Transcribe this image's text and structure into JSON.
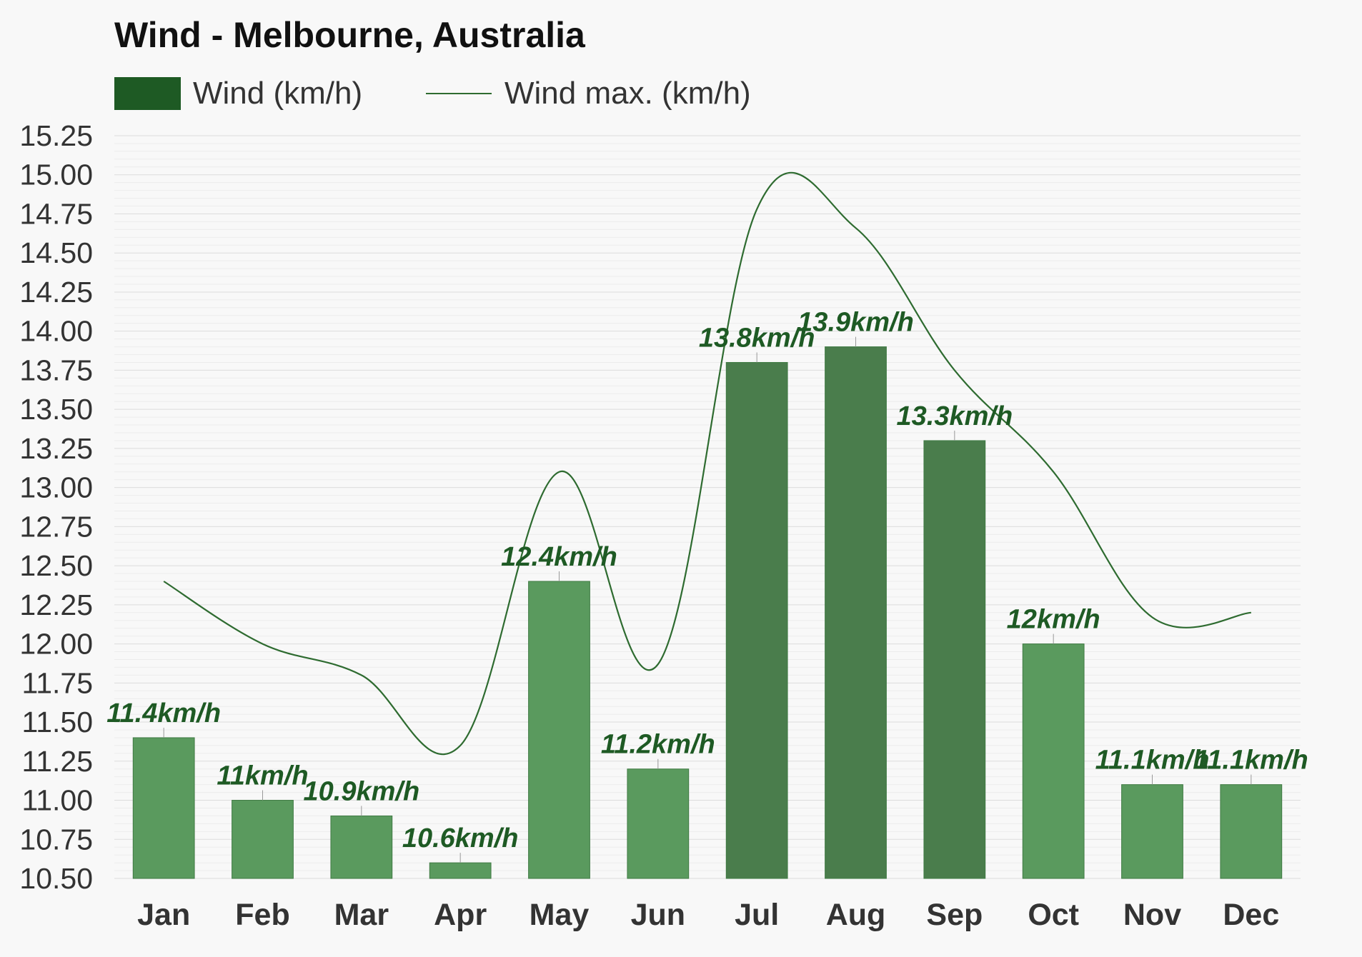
{
  "chart_data": {
    "type": "bar",
    "title": "Wind - Melbourne, Australia",
    "categories": [
      "Jan",
      "Feb",
      "Mar",
      "Apr",
      "May",
      "Jun",
      "Jul",
      "Aug",
      "Sep",
      "Oct",
      "Nov",
      "Dec"
    ],
    "series": [
      {
        "name": "Wind (km/h)",
        "type": "bar",
        "values": [
          11.4,
          11.0,
          10.9,
          10.6,
          12.4,
          11.2,
          13.8,
          13.9,
          13.3,
          12.0,
          11.1,
          11.1
        ],
        "labels": [
          "11.4km/h",
          "11km/h",
          "10.9km/h",
          "10.6km/h",
          "12.4km/h",
          "11.2km/h",
          "13.8km/h",
          "13.9km/h",
          "13.3km/h",
          "12km/h",
          "11.1km/h",
          "11.1km/h"
        ],
        "color": "#5a9a5e",
        "color_high": "#4a7d4c"
      },
      {
        "name": "Wind max. (km/h)",
        "type": "line",
        "values": [
          12.4,
          12.0,
          11.8,
          11.35,
          13.1,
          11.87,
          14.78,
          14.66,
          13.75,
          13.1,
          12.17,
          12.2
        ],
        "color": "#2e6b30"
      }
    ],
    "ylim": [
      10.5,
      15.25
    ],
    "yticks": [
      "10.50",
      "10.75",
      "11.00",
      "11.25",
      "11.50",
      "11.75",
      "12.00",
      "12.25",
      "12.50",
      "12.75",
      "13.00",
      "13.25",
      "13.50",
      "13.75",
      "14.00",
      "14.25",
      "14.50",
      "14.75",
      "15.00",
      "15.25"
    ],
    "grid": true,
    "legend_position": "top-left",
    "legend_swatch_color": "#1e5a24",
    "label_color": "#1e5a24",
    "xlabel": "",
    "ylabel": ""
  }
}
